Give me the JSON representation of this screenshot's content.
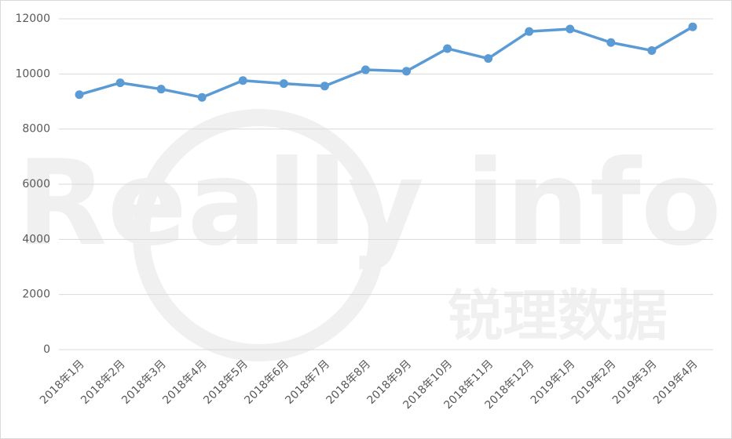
{
  "chart_data": {
    "type": "line",
    "categories": [
      "2018年1月",
      "2018年2月",
      "2018年3月",
      "2018年4月",
      "2018年5月",
      "2018年6月",
      "2018年7月",
      "2018年8月",
      "2018年9月",
      "2018年10月",
      "2018年11月",
      "2018年12月",
      "2019年1月",
      "2019年2月",
      "2019年3月",
      "2019年4月"
    ],
    "values": [
      9250,
      9680,
      9450,
      9150,
      9760,
      9650,
      9560,
      10150,
      10100,
      10920,
      10560,
      11540,
      11630,
      11140,
      10850,
      11710
    ],
    "color": "#5b9bd5",
    "ylim": [
      0,
      12000
    ],
    "yticks": [
      0,
      2000,
      4000,
      6000,
      8000,
      10000,
      12000
    ],
    "grid": true,
    "watermark": [
      "Really info",
      "锐理数据"
    ]
  }
}
